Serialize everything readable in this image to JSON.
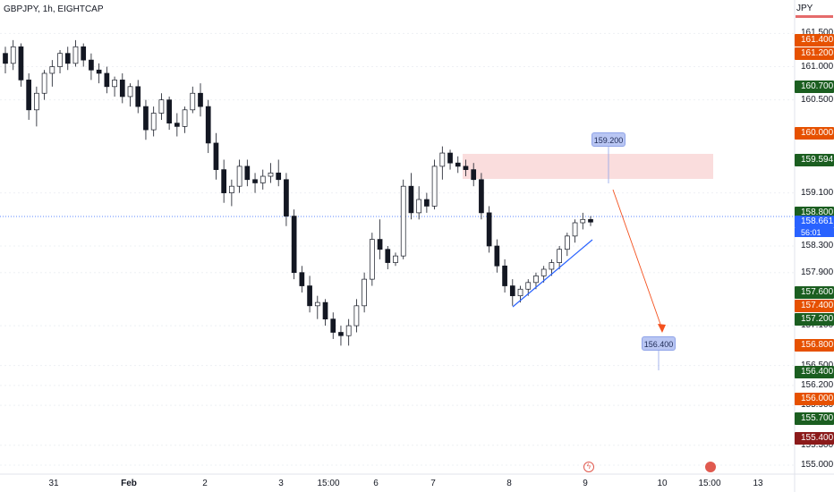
{
  "header": {
    "symbol": "GBPJPY, 1h, EIGHTCAP",
    "currency": "JPY"
  },
  "colors": {
    "up": "#131722",
    "down": "#131722",
    "green_tag": "#1b5e20",
    "orange_tag": "#e65100",
    "red_tag": "#8b1a1a",
    "blue_tag": "#2962ff",
    "zone": "#f9d7d7",
    "trend": "#2962ff",
    "projection": "#f4511e"
  },
  "chart_data": {
    "type": "candlestick",
    "title": "GBPJPY, 1h, EIGHTCAP",
    "ylim": [
      155.0,
      161.6
    ],
    "y_ticks": [
      "161.500",
      "161.000",
      "160.500",
      "159.100",
      "158.300",
      "157.900",
      "157.100",
      "156.500",
      "156.200",
      "155.900",
      "155.300",
      "155.000"
    ],
    "x_ticks": [
      {
        "label": "31",
        "bold": false
      },
      {
        "label": "Feb",
        "bold": true
      },
      {
        "label": "2",
        "bold": false
      },
      {
        "label": "3",
        "bold": false
      },
      {
        "label": "15:00",
        "bold": false
      },
      {
        "label": "6",
        "bold": false
      },
      {
        "label": "7",
        "bold": false
      },
      {
        "label": "8",
        "bold": false
      },
      {
        "label": "9",
        "bold": false
      },
      {
        "label": "10",
        "bold": false
      },
      {
        "label": "15:00",
        "bold": false
      },
      {
        "label": "13",
        "bold": false
      }
    ],
    "price_tags": [
      {
        "value": "161.400",
        "kind": "orange"
      },
      {
        "value": "161.200",
        "kind": "orange"
      },
      {
        "value": "160.700",
        "kind": "green"
      },
      {
        "value": "160.000",
        "kind": "orange"
      },
      {
        "value": "159.594",
        "kind": "green"
      },
      {
        "value": "158.800",
        "kind": "green"
      },
      {
        "value": "158.661",
        "kind": "blue",
        "sub": "56:01"
      },
      {
        "value": "157.600",
        "kind": "green"
      },
      {
        "value": "157.400",
        "kind": "orange"
      },
      {
        "value": "157.200",
        "kind": "green"
      },
      {
        "value": "156.800",
        "kind": "orange"
      },
      {
        "value": "156.400",
        "kind": "green"
      },
      {
        "value": "156.000",
        "kind": "orange"
      },
      {
        "value": "155.700",
        "kind": "green"
      },
      {
        "value": "155.400",
        "kind": "red"
      }
    ],
    "annotations": [
      {
        "label": "159.200",
        "type": "target-callout"
      },
      {
        "label": "156.400",
        "type": "target-callout"
      }
    ],
    "resistance_zone": [
      159.2,
      159.6
    ],
    "candles": [
      [
        161.2,
        161.3,
        160.9,
        161.05
      ],
      [
        161.05,
        161.4,
        160.95,
        161.3
      ],
      [
        161.3,
        161.35,
        160.7,
        160.8
      ],
      [
        160.8,
        160.9,
        160.2,
        160.35
      ],
      [
        160.35,
        160.7,
        160.1,
        160.6
      ],
      [
        160.6,
        160.95,
        160.5,
        160.9
      ],
      [
        160.9,
        161.1,
        160.7,
        161.0
      ],
      [
        161.0,
        161.25,
        160.9,
        161.2
      ],
      [
        161.2,
        161.3,
        160.95,
        161.05
      ],
      [
        161.05,
        161.4,
        161.0,
        161.3
      ],
      [
        161.3,
        161.35,
        161.0,
        161.1
      ],
      [
        161.1,
        161.2,
        160.8,
        160.95
      ],
      [
        160.95,
        161.05,
        160.75,
        160.9
      ],
      [
        160.9,
        161.0,
        160.6,
        160.7
      ],
      [
        160.7,
        160.85,
        160.55,
        160.8
      ],
      [
        160.8,
        160.9,
        160.45,
        160.55
      ],
      [
        160.55,
        160.75,
        160.4,
        160.7
      ],
      [
        160.7,
        160.8,
        160.3,
        160.4
      ],
      [
        160.4,
        160.5,
        159.9,
        160.05
      ],
      [
        160.05,
        160.4,
        159.95,
        160.3
      ],
      [
        160.3,
        160.6,
        160.2,
        160.5
      ],
      [
        160.5,
        160.55,
        160.05,
        160.15
      ],
      [
        160.15,
        160.3,
        159.95,
        160.1
      ],
      [
        160.1,
        160.4,
        160.0,
        160.35
      ],
      [
        160.35,
        160.7,
        160.3,
        160.6
      ],
      [
        160.6,
        160.75,
        160.25,
        160.4
      ],
      [
        160.4,
        160.5,
        159.7,
        159.85
      ],
      [
        159.85,
        160.0,
        159.3,
        159.45
      ],
      [
        159.45,
        159.6,
        158.95,
        159.1
      ],
      [
        159.1,
        159.3,
        158.9,
        159.2
      ],
      [
        159.2,
        159.6,
        159.1,
        159.5
      ],
      [
        159.5,
        159.6,
        159.2,
        159.3
      ],
      [
        159.3,
        159.4,
        159.1,
        159.25
      ],
      [
        159.25,
        159.45,
        159.15,
        159.35
      ],
      [
        159.35,
        159.55,
        159.25,
        159.4
      ],
      [
        159.4,
        159.6,
        159.2,
        159.3
      ],
      [
        159.3,
        159.4,
        158.6,
        158.75
      ],
      [
        158.75,
        158.85,
        157.8,
        157.9
      ],
      [
        157.9,
        158.0,
        157.6,
        157.7
      ],
      [
        157.7,
        157.85,
        157.3,
        157.4
      ],
      [
        157.4,
        157.55,
        157.2,
        157.45
      ],
      [
        157.45,
        157.5,
        157.1,
        157.2
      ],
      [
        157.2,
        157.3,
        156.9,
        157.0
      ],
      [
        157.0,
        157.1,
        156.8,
        156.95
      ],
      [
        156.95,
        157.2,
        156.8,
        157.1
      ],
      [
        157.1,
        157.5,
        157.0,
        157.4
      ],
      [
        157.4,
        157.9,
        157.3,
        157.8
      ],
      [
        157.8,
        158.5,
        157.7,
        158.4
      ],
      [
        158.4,
        158.7,
        158.1,
        158.25
      ],
      [
        158.25,
        158.3,
        157.95,
        158.05
      ],
      [
        158.05,
        158.2,
        158.0,
        158.15
      ],
      [
        158.15,
        159.3,
        158.1,
        159.2
      ],
      [
        159.2,
        159.4,
        158.7,
        158.8
      ],
      [
        158.8,
        159.2,
        158.7,
        159.0
      ],
      [
        159.0,
        159.1,
        158.8,
        158.9
      ],
      [
        158.9,
        159.6,
        158.85,
        159.5
      ],
      [
        159.5,
        159.8,
        159.3,
        159.7
      ],
      [
        159.7,
        159.75,
        159.45,
        159.55
      ],
      [
        159.55,
        159.65,
        159.4,
        159.5
      ],
      [
        159.5,
        159.6,
        159.35,
        159.45
      ],
      [
        159.45,
        159.55,
        159.2,
        159.3
      ],
      [
        159.3,
        159.4,
        158.7,
        158.8
      ],
      [
        158.8,
        158.9,
        158.2,
        158.3
      ],
      [
        158.3,
        158.4,
        157.9,
        158.0
      ],
      [
        158.0,
        158.1,
        157.6,
        157.7
      ],
      [
        157.7,
        157.8,
        157.4,
        157.55
      ],
      [
        157.55,
        157.7,
        157.45,
        157.65
      ],
      [
        157.65,
        157.8,
        157.55,
        157.75
      ],
      [
        157.75,
        157.9,
        157.65,
        157.85
      ],
      [
        157.85,
        158.0,
        157.75,
        157.95
      ],
      [
        157.95,
        158.1,
        157.85,
        158.05
      ],
      [
        158.05,
        158.3,
        157.95,
        158.25
      ],
      [
        158.25,
        158.5,
        158.15,
        158.45
      ],
      [
        158.45,
        158.7,
        158.35,
        158.65
      ],
      [
        158.65,
        158.8,
        158.55,
        158.7
      ],
      [
        158.7,
        158.75,
        158.6,
        158.66
      ]
    ]
  }
}
